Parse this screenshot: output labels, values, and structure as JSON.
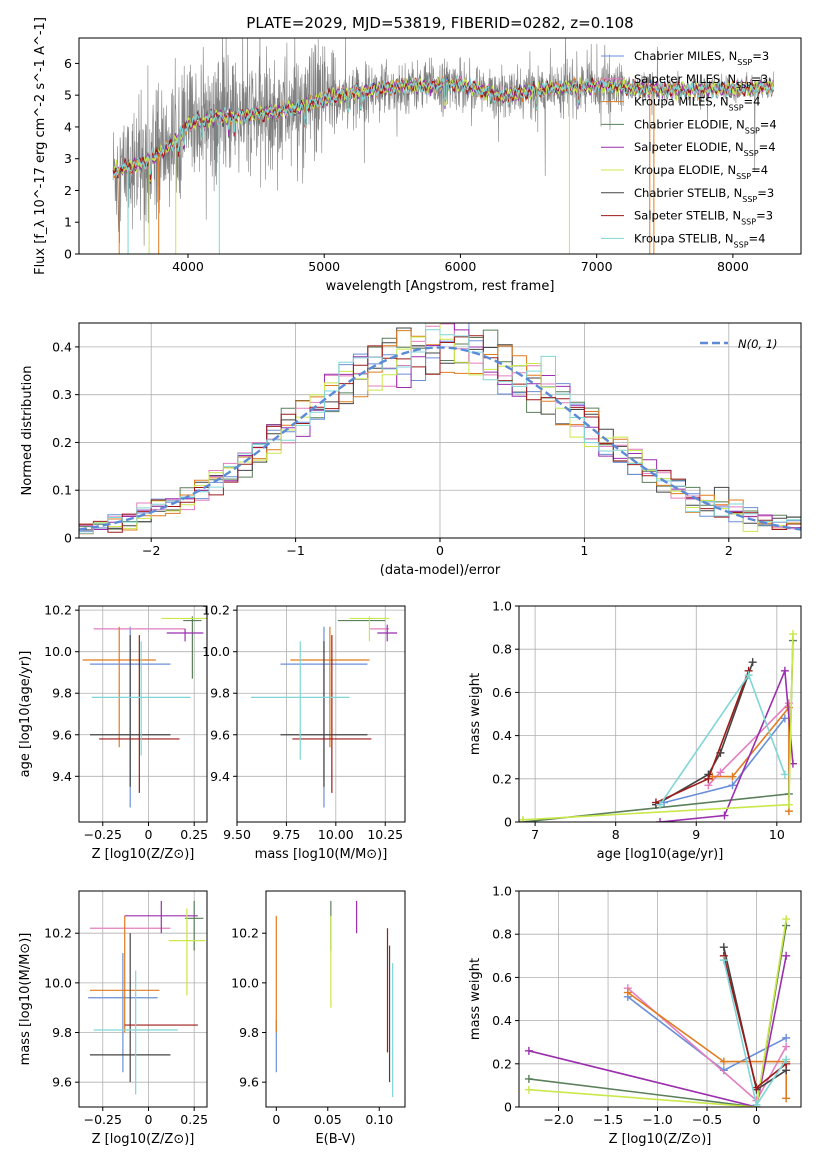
{
  "figure": {
    "title": "PLATE=2029, MJD=53819, FIBERID=0282, z=0.108"
  },
  "legend": {
    "entries": [
      {
        "label": "Chabrier MILES, N_SSP=3",
        "color": "#6a8fd8"
      },
      {
        "label": "Salpeter MILES, N_SSP=3",
        "color": "#e37ec0"
      },
      {
        "label": "Kroupa MILES, N_SSP=4",
        "color": "#e07b1f"
      },
      {
        "label": "Chabrier ELODIE, N_SSP=4",
        "color": "#5a7f5a"
      },
      {
        "label": "Salpeter ELODIE, N_SSP=4",
        "color": "#9b2fae"
      },
      {
        "label": "Kroupa ELODIE, N_SSP=4",
        "color": "#c9e84a"
      },
      {
        "label": "Chabrier STELIB, N_SSP=3",
        "color": "#444444"
      },
      {
        "label": "Salpeter STELIB, N_SSP=3",
        "color": "#9e1a1a"
      },
      {
        "label": "Kroupa STELIB, N_SSP=4",
        "color": "#7fd6d6"
      }
    ],
    "gaussian_label": "N(0, 1)"
  },
  "chart_data": [
    {
      "id": "spectrum",
      "type": "line",
      "xlabel": "wavelength [Angstrom, rest frame]",
      "ylabel": "Flux [f_λ 10^-17 erg cm^-2 s^-1 A^-1]",
      "xlim": [
        3200,
        8500
      ],
      "ylim": [
        0,
        6.8
      ],
      "xticks": [
        4000,
        5000,
        6000,
        7000,
        8000
      ],
      "yticks": [
        0,
        1,
        2,
        3,
        4,
        5,
        6
      ],
      "grid": false,
      "legend_position": "right",
      "data_range": [
        3450,
        8300
      ],
      "continuum_knots": [
        [
          3450,
          2.6
        ],
        [
          3700,
          2.9
        ],
        [
          3900,
          3.5
        ],
        [
          4000,
          4.1
        ],
        [
          4200,
          4.3
        ],
        [
          4500,
          4.4
        ],
        [
          4800,
          4.6
        ],
        [
          5100,
          5.0
        ],
        [
          5500,
          5.25
        ],
        [
          6000,
          5.35
        ],
        [
          6300,
          4.95
        ],
        [
          6600,
          5.2
        ],
        [
          7000,
          5.3
        ],
        [
          7500,
          5.15
        ],
        [
          8000,
          5.2
        ],
        [
          8300,
          5.25
        ]
      ]
    },
    {
      "id": "residuals",
      "type": "line",
      "xlabel": "(data-model)/error",
      "ylabel": "Normed distribution",
      "xlim": [
        -2.5,
        2.5
      ],
      "ylim": [
        0,
        0.45
      ],
      "xticks": [
        -2,
        -1,
        0,
        1,
        2
      ],
      "yticks": [
        0.0,
        0.1,
        0.2,
        0.3,
        0.4
      ],
      "grid": true,
      "legend_position": "top-right",
      "bin_width": 0.1,
      "gaussian": {
        "mean": 0,
        "sigma": 1
      }
    },
    {
      "id": "age-vs-Z",
      "type": "scatter",
      "xlabel": "Z [log10(Z/Z⊙)]",
      "ylabel": "age [log10(age/yr)]",
      "xlim": [
        -0.38,
        0.32
      ],
      "ylim": [
        9.18,
        10.22
      ],
      "xticks": [
        -0.25,
        0.0,
        0.25
      ],
      "yticks": [
        9.4,
        9.6,
        9.8,
        10.0,
        10.2
      ],
      "grid": true,
      "errorbars": [
        {
          "series": 0,
          "x": -0.1,
          "y": 9.94,
          "xerr": 0.22,
          "yerr": 0.0,
          "ylo": 9.25,
          "yhi": 10.12
        },
        {
          "series": 1,
          "x": -0.05,
          "y": 10.11,
          "xerr": 0.25
        },
        {
          "series": 2,
          "x": -0.16,
          "y": 9.96,
          "xerr": 0.2,
          "ylo": 9.54,
          "yhi": 10.12
        },
        {
          "series": 3,
          "x": 0.24,
          "y": 10.15,
          "xerr": 0.05,
          "ylo": 9.87,
          "yhi": 10.17
        },
        {
          "series": 4,
          "x": 0.2,
          "y": 10.09,
          "xerr": 0.1,
          "ylo": 10.05,
          "yhi": 10.11
        },
        {
          "series": 5,
          "x": 0.22,
          "y": 10.16,
          "xerr": 0.15
        },
        {
          "series": 6,
          "x": -0.1,
          "y": 9.6,
          "xerr": 0.22,
          "ylo": 9.35,
          "yhi": 10.08
        },
        {
          "series": 7,
          "x": -0.05,
          "y": 9.58,
          "xerr": 0.22,
          "ylo": 9.32,
          "yhi": 10.08
        },
        {
          "series": 8,
          "x": -0.04,
          "y": 9.78,
          "xerr": 0.27,
          "ylo": 9.5,
          "yhi": 10.05
        }
      ]
    },
    {
      "id": "age-vs-mass",
      "type": "scatter",
      "xlabel": "mass [log10(M/M⊙)]",
      "ylabel": "",
      "xlim": [
        9.5,
        10.35
      ],
      "ylim": [
        9.18,
        10.22
      ],
      "xticks": [
        9.5,
        9.75,
        10.0,
        10.25
      ],
      "yticks": [
        9.4,
        9.6,
        9.8,
        10.0,
        10.2
      ],
      "grid": true,
      "errorbars": [
        {
          "series": 0,
          "x": 9.94,
          "y": 9.94,
          "xerr": 0.22,
          "ylo": 9.25,
          "yhi": 10.12
        },
        {
          "series": 1,
          "x": 10.22,
          "y": 10.11,
          "xerr": 0.05
        },
        {
          "series": 2,
          "x": 9.97,
          "y": 9.96,
          "xerr": 0.2,
          "ylo": 9.54,
          "yhi": 10.12
        },
        {
          "series": 3,
          "x": 10.13,
          "y": 10.15,
          "xerr": 0.12
        },
        {
          "series": 4,
          "x": 10.26,
          "y": 10.09,
          "xerr": 0.05,
          "ylo": 10.05,
          "yhi": 10.13
        },
        {
          "series": 5,
          "x": 10.17,
          "y": 10.16,
          "xerr": 0.1,
          "ylo": 10.05,
          "yhi": 10.17
        },
        {
          "series": 6,
          "x": 9.94,
          "y": 9.6,
          "xerr": 0.22,
          "ylo": 9.35,
          "yhi": 10.05
        },
        {
          "series": 7,
          "x": 9.98,
          "y": 9.58,
          "xerr": 0.2,
          "ylo": 9.32,
          "yhi": 10.08
        },
        {
          "series": 8,
          "x": 9.82,
          "y": 9.78,
          "xerr": 0.25,
          "ylo": 9.48,
          "yhi": 10.05
        }
      ]
    },
    {
      "id": "weight-vs-age",
      "type": "line",
      "xlabel": "age [log10(age/yr)]",
      "ylabel": "mass weight",
      "xlim": [
        6.8,
        10.3
      ],
      "ylim": [
        0,
        1.0
      ],
      "xticks": [
        7,
        8,
        9,
        10
      ],
      "yticks": [
        0.0,
        0.2,
        0.4,
        0.6,
        0.8,
        1.0
      ],
      "grid": true,
      "series": [
        {
          "series": 0,
          "x": [
            8.6,
            9.45,
            10.1
          ],
          "y": [
            0.09,
            0.17,
            0.48
          ]
        },
        {
          "series": 1,
          "x": [
            9.15,
            9.3,
            10.15
          ],
          "y": [
            0.17,
            0.23,
            0.55
          ]
        },
        {
          "series": 2,
          "x": [
            9.2,
            9.45,
            10.15,
            10.15
          ],
          "y": [
            0.21,
            0.21,
            0.53,
            0.05
          ]
        },
        {
          "series": 3,
          "x": [
            6.85,
            10.15,
            10.2
          ],
          "y": [
            0.0,
            0.13,
            0.84
          ]
        },
        {
          "series": 4,
          "x": [
            8.55,
            9.35,
            10.1,
            10.2
          ],
          "y": [
            0.0,
            0.03,
            0.7,
            0.27
          ]
        },
        {
          "series": 5,
          "x": [
            6.85,
            10.15,
            10.2
          ],
          "y": [
            0.01,
            0.08,
            0.87
          ]
        },
        {
          "series": 6,
          "x": [
            8.5,
            9.15,
            9.3,
            9.7
          ],
          "y": [
            0.08,
            0.22,
            0.32,
            0.74
          ]
        },
        {
          "series": 7,
          "x": [
            8.5,
            9.15,
            9.65
          ],
          "y": [
            0.09,
            0.2,
            0.7
          ]
        },
        {
          "series": 8,
          "x": [
            8.55,
            9.65,
            10.1
          ],
          "y": [
            0.08,
            0.68,
            0.22
          ]
        }
      ]
    },
    {
      "id": "mass-vs-Z",
      "type": "scatter",
      "xlabel": "Z [log10(Z/Z⊙)]",
      "ylabel": "mass [log10(M/M⊙)]",
      "xlim": [
        -0.38,
        0.32
      ],
      "ylim": [
        9.5,
        10.37
      ],
      "xticks": [
        -0.25,
        0.0,
        0.25
      ],
      "yticks": [
        9.6,
        9.8,
        10.0,
        10.2
      ],
      "grid": true,
      "errorbars": [
        {
          "series": 0,
          "x": -0.14,
          "y": 9.94,
          "xerr": 0.19,
          "ylo": 9.64,
          "yhi": 10.12
        },
        {
          "series": 1,
          "x": -0.1,
          "y": 10.22,
          "xerr": 0.22
        },
        {
          "series": 2,
          "x": -0.13,
          "y": 9.97,
          "xerr": 0.19,
          "ylo": 9.8,
          "yhi": 10.27
        },
        {
          "series": 3,
          "x": 0.25,
          "y": 10.26,
          "xerr": 0.05,
          "ylo": 10.13,
          "yhi": 10.33
        },
        {
          "series": 4,
          "x": 0.07,
          "y": 10.27,
          "xerr": 0.2,
          "ylo": 10.2,
          "yhi": 10.33
        },
        {
          "series": 5,
          "x": 0.21,
          "y": 10.17,
          "xerr": 0.1,
          "ylo": 9.95,
          "yhi": 10.3
        },
        {
          "series": 6,
          "x": -0.1,
          "y": 9.71,
          "xerr": 0.22,
          "ylo": 9.6,
          "yhi": 10.2
        },
        {
          "series": 7,
          "x": 0.07,
          "y": 9.83,
          "xerr": 0.2
        },
        {
          "series": 8,
          "x": -0.07,
          "y": 9.81,
          "xerr": 0.23,
          "ylo": 9.55,
          "yhi": 10.05
        }
      ]
    },
    {
      "id": "mass-vs-EBV",
      "type": "scatter",
      "xlabel": "E(B-V)",
      "ylabel": "",
      "xlim": [
        -0.01,
        0.125
      ],
      "ylim": [
        9.5,
        10.37
      ],
      "xticks": [
        0.0,
        0.05,
        0.1
      ],
      "yticks": [
        9.6,
        9.8,
        10.0,
        10.2
      ],
      "grid": false,
      "errorbars": [
        {
          "series": 0,
          "x": 0.0,
          "ylo": 9.64,
          "yhi": 9.85
        },
        {
          "series": 2,
          "x": 0.0,
          "ylo": 9.8,
          "yhi": 10.27
        },
        {
          "series": 3,
          "x": 0.053,
          "ylo": 10.13,
          "yhi": 10.33
        },
        {
          "series": 5,
          "x": 0.053,
          "ylo": 9.9,
          "yhi": 10.27
        },
        {
          "series": 4,
          "x": 0.078,
          "ylo": 10.2,
          "yhi": 10.33
        },
        {
          "series": 7,
          "x": 0.108,
          "ylo": 9.72,
          "yhi": 10.22
        },
        {
          "series": 6,
          "x": 0.11,
          "ylo": 9.6,
          "yhi": 10.15
        },
        {
          "series": 8,
          "x": 0.113,
          "ylo": 9.54,
          "yhi": 10.08
        }
      ]
    },
    {
      "id": "weight-vs-Z",
      "type": "line",
      "xlabel": "Z [log10(Z/Z⊙)]",
      "ylabel": "mass weight",
      "xlim": [
        -2.4,
        0.45
      ],
      "ylim": [
        0,
        1.0
      ],
      "xticks": [
        -2.0,
        -1.5,
        -1.0,
        -0.5,
        0.0
      ],
      "yticks": [
        0.0,
        0.2,
        0.4,
        0.6,
        0.8,
        1.0
      ],
      "grid": true,
      "series": [
        {
          "series": 0,
          "x": [
            -1.3,
            -0.33,
            0.3
          ],
          "y": [
            0.51,
            0.17,
            0.32
          ]
        },
        {
          "series": 1,
          "x": [
            -1.3,
            0.0,
            0.3
          ],
          "y": [
            0.55,
            0.03,
            0.28
          ]
        },
        {
          "series": 2,
          "x": [
            -1.3,
            -0.33,
            0.3,
            0.3
          ],
          "y": [
            0.53,
            0.21,
            0.21,
            0.04
          ]
        },
        {
          "series": 3,
          "x": [
            -2.3,
            0.0,
            0.3
          ],
          "y": [
            0.13,
            0.0,
            0.84
          ]
        },
        {
          "series": 4,
          "x": [
            -2.3,
            0.0,
            0.3
          ],
          "y": [
            0.26,
            0.0,
            0.7
          ]
        },
        {
          "series": 5,
          "x": [
            -2.3,
            0.0,
            0.3
          ],
          "y": [
            0.08,
            0.0,
            0.87
          ]
        },
        {
          "series": 6,
          "x": [
            -0.33,
            0.0,
            0.3
          ],
          "y": [
            0.74,
            0.08,
            0.17
          ]
        },
        {
          "series": 7,
          "x": [
            -0.33,
            0.0,
            0.3
          ],
          "y": [
            0.7,
            0.09,
            0.2
          ]
        },
        {
          "series": 8,
          "x": [
            -0.33,
            0.0,
            0.3
          ],
          "y": [
            0.68,
            0.01,
            0.22
          ]
        }
      ]
    }
  ]
}
